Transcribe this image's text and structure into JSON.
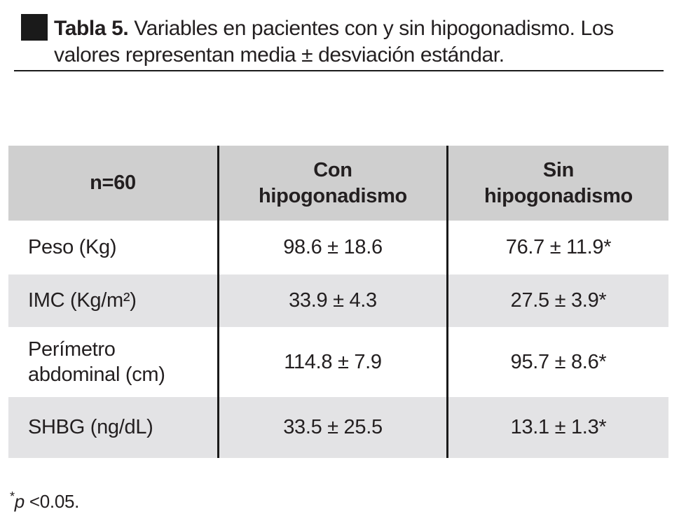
{
  "title": {
    "label": "Tabla 5.",
    "text": "Variables en pacientes con y sin hipogonadismo. Los valores representan media ± desviación estándar."
  },
  "table": {
    "headers": [
      "n=60",
      "Con\nhipogonadismo",
      "Sin\nhipogonadismo"
    ],
    "rows": [
      {
        "variable": "Peso (Kg)",
        "con_hipogonadismo": "98.6 ± 18.6",
        "sin_hipogonadismo": "76.7 ± 11.9*"
      },
      {
        "variable": "IMC (Kg/m²)",
        "con_hipogonadismo": "33.9 ± 4.3",
        "sin_hipogonadismo": "27.5 ± 3.9*"
      },
      {
        "variable": "Perímetro\nabdominal (cm)",
        "con_hipogonadismo": "114.8 ± 7.9",
        "sin_hipogonadismo": "95.7 ± 8.6*"
      },
      {
        "variable": "SHBG (ng/dL)",
        "con_hipogonadismo": "33.5 ± 25.5",
        "sin_hipogonadismo": "13.1 ± 1.3*"
      }
    ]
  },
  "footnote": {
    "marker": "*",
    "symbol": "p",
    "text": " <0.05."
  },
  "colors": {
    "header_bg": "#cfcfcf",
    "row_alt_bg": "#e3e3e5",
    "text": "#231f20",
    "divider": "#1a1a1a"
  }
}
